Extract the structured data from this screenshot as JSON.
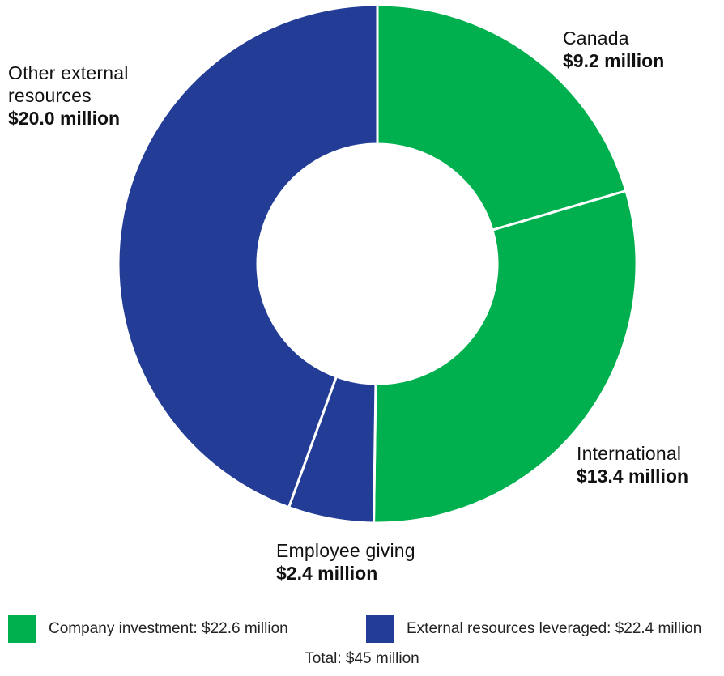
{
  "colors": {
    "company": "#00b04f",
    "external": "#233d96",
    "divider": "#ffffff"
  },
  "chart_data": {
    "type": "pie",
    "variant": "donut",
    "title": "",
    "unit": "million",
    "slices": [
      {
        "name": "Canada",
        "value": 9.2,
        "value_label": "$9.2 million",
        "group": "company"
      },
      {
        "name": "International",
        "value": 13.4,
        "value_label": "$13.4 million",
        "group": "company"
      },
      {
        "name": "Employee giving",
        "value": 2.4,
        "value_label": "$2.4 million",
        "group": "external"
      },
      {
        "name": "Other external resources",
        "value": 20.0,
        "value_label": "$20.0 million",
        "group": "external"
      }
    ],
    "legend": {
      "placement": "bottom",
      "entries": [
        {
          "group": "company",
          "label": "Company investment: $22.6 million"
        },
        {
          "group": "external",
          "label": "External resources leveraged: $22.4 million"
        }
      ]
    },
    "total_label": "Total: $45 million",
    "start_angle": "12 o'clock",
    "direction": "clockwise"
  }
}
